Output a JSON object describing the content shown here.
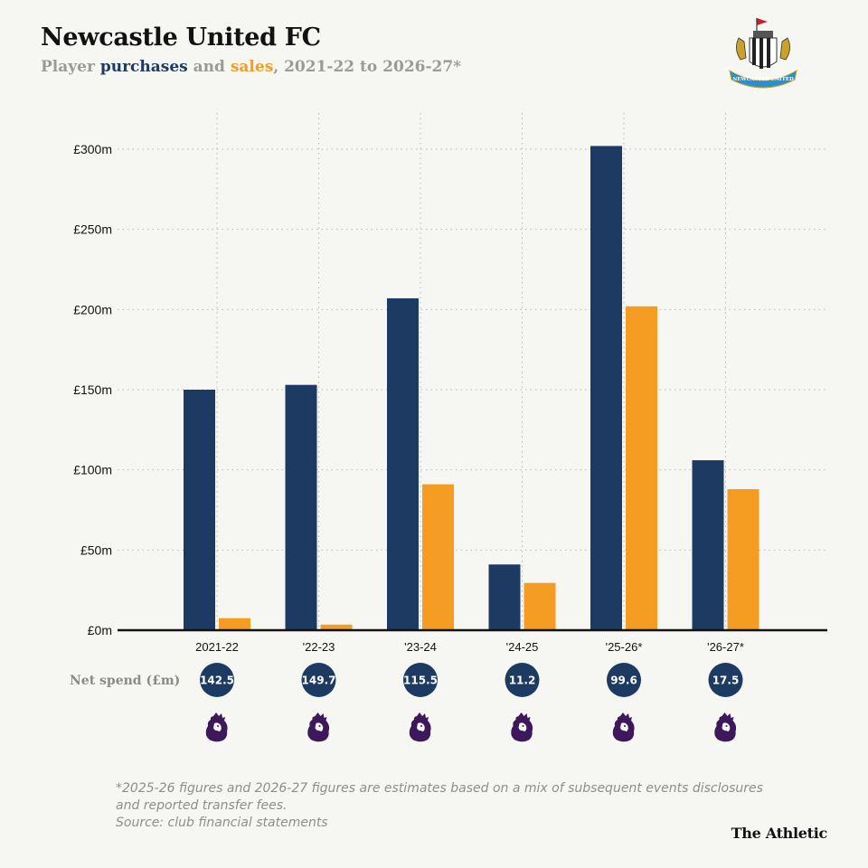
{
  "header": {
    "title": "Newcastle United FC",
    "subtitle_prefix": "Player ",
    "subtitle_purchases": "purchases",
    "subtitle_and": " and ",
    "subtitle_sales": "sales",
    "subtitle_suffix": ", 2021-22 to 2026-27*"
  },
  "crest": {
    "text": "NEWCASTLE UNITED"
  },
  "colors": {
    "purchases": "#1d3a63",
    "sales": "#f59d22",
    "badge": "#1d3a63",
    "premier_league": "#3d195b"
  },
  "chart_data": {
    "type": "bar",
    "categories": [
      "2021-22",
      "'22-23",
      "'23-24",
      "'24-25",
      "'25-26*",
      "'26-27*"
    ],
    "series": [
      {
        "key": "purchases",
        "values": [
          150,
          153,
          207,
          41,
          302,
          106
        ]
      },
      {
        "key": "sales",
        "values": [
          7.5,
          3.5,
          91,
          29.5,
          202,
          88
        ]
      }
    ],
    "ylim": [
      0,
      300
    ],
    "yticks": [
      0,
      50,
      100,
      150,
      200,
      250,
      300
    ],
    "ytick_labels": [
      "£0m",
      "£50m",
      "£100m",
      "£150m",
      "£200m",
      "£250m",
      "£300m"
    ],
    "grid": true,
    "net_spend_label": "Net spend (£m)",
    "net_spend": [
      "142.5",
      "149.7",
      "115.5",
      "11.2",
      "99.6",
      "17.5"
    ],
    "league_icon": "premier-league-lion-icon"
  },
  "footnote": {
    "line1": "*2025-26 figures and 2026-27 figures are estimates based on a mix of subsequent events disclosures",
    "line2": "and reported transfer fees.",
    "line3": "Source: club financial statements"
  },
  "brand": "The Athletic"
}
